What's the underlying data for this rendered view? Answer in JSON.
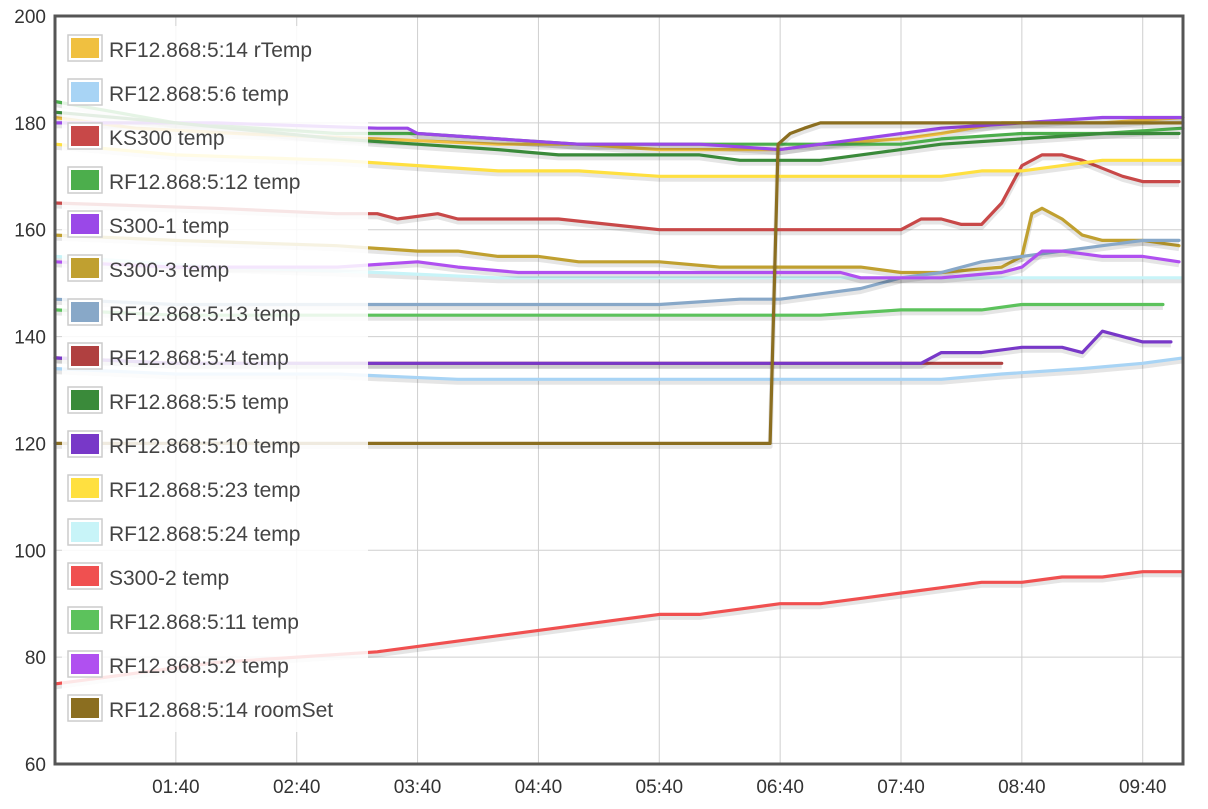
{
  "chart_data": {
    "type": "line",
    "title": "",
    "xlabel": "",
    "ylabel": "",
    "ylim": [
      60,
      200
    ],
    "yticks": [
      60,
      80,
      100,
      120,
      140,
      160,
      180,
      200
    ],
    "x_unit": "minutes since 00:40",
    "xlim": [
      0,
      560
    ],
    "xticks": [
      {
        "x": 60,
        "label": "01:40"
      },
      {
        "x": 120,
        "label": "02:40"
      },
      {
        "x": 180,
        "label": "03:40"
      },
      {
        "x": 240,
        "label": "04:40"
      },
      {
        "x": 300,
        "label": "05:40"
      },
      {
        "x": 360,
        "label": "06:40"
      },
      {
        "x": 420,
        "label": "07:40"
      },
      {
        "x": 480,
        "label": "08:40"
      },
      {
        "x": 540,
        "label": "09:40"
      }
    ],
    "grid": true,
    "legend_position": "top-left",
    "series": [
      {
        "name": "RF12.868:5:14 rTemp",
        "color": "#f0c040",
        "points": [
          [
            0,
            181
          ],
          [
            40,
            179
          ],
          [
            90,
            178
          ],
          [
            160,
            177
          ],
          [
            220,
            176
          ],
          [
            260,
            176
          ],
          [
            300,
            175
          ],
          [
            340,
            175
          ],
          [
            360,
            175
          ],
          [
            380,
            176
          ],
          [
            420,
            177
          ],
          [
            440,
            178
          ],
          [
            470,
            180
          ],
          [
            490,
            180
          ],
          [
            520,
            180
          ],
          [
            560,
            181
          ]
        ]
      },
      {
        "name": "RF12.868:5:6 temp",
        "color": "#a8d4f5",
        "points": [
          [
            0,
            134
          ],
          [
            60,
            133
          ],
          [
            140,
            133
          ],
          [
            200,
            132
          ],
          [
            260,
            132
          ],
          [
            300,
            132
          ],
          [
            360,
            132
          ],
          [
            400,
            132
          ],
          [
            440,
            132
          ],
          [
            470,
            133
          ],
          [
            510,
            134
          ],
          [
            540,
            135
          ],
          [
            560,
            136
          ]
        ]
      },
      {
        "name": "KS300 temp",
        "color": "#c84848",
        "points": [
          [
            0,
            165
          ],
          [
            80,
            164
          ],
          [
            140,
            163
          ],
          [
            160,
            163
          ],
          [
            170,
            162
          ],
          [
            190,
            163
          ],
          [
            200,
            162
          ],
          [
            250,
            162
          ],
          [
            300,
            160
          ],
          [
            340,
            160
          ],
          [
            420,
            160
          ],
          [
            430,
            162
          ],
          [
            440,
            162
          ],
          [
            450,
            161
          ],
          [
            460,
            161
          ],
          [
            470,
            165
          ],
          [
            480,
            172
          ],
          [
            490,
            174
          ],
          [
            500,
            174
          ],
          [
            510,
            173
          ],
          [
            530,
            170
          ],
          [
            540,
            169
          ],
          [
            558,
            169
          ]
        ]
      },
      {
        "name": "RF12.868:5:12 temp",
        "color": "#4cae4c",
        "points": [
          [
            0,
            184
          ],
          [
            60,
            180
          ],
          [
            140,
            178
          ],
          [
            180,
            178
          ],
          [
            220,
            177
          ],
          [
            260,
            176
          ],
          [
            300,
            176
          ],
          [
            340,
            176
          ],
          [
            360,
            176
          ],
          [
            380,
            176
          ],
          [
            420,
            176
          ],
          [
            440,
            177
          ],
          [
            480,
            178
          ],
          [
            520,
            178
          ],
          [
            560,
            179
          ]
        ]
      },
      {
        "name": "S300-1 temp",
        "color": "#9a48e8",
        "points": [
          [
            0,
            180
          ],
          [
            80,
            180
          ],
          [
            160,
            179
          ],
          [
            175,
            179
          ],
          [
            180,
            178
          ],
          [
            220,
            177
          ],
          [
            260,
            176
          ],
          [
            320,
            176
          ],
          [
            360,
            175
          ],
          [
            380,
            176
          ],
          [
            400,
            177
          ],
          [
            440,
            179
          ],
          [
            480,
            180
          ],
          [
            520,
            181
          ],
          [
            560,
            181
          ]
        ]
      },
      {
        "name": "S300-3 temp",
        "color": "#c0a030",
        "points": [
          [
            0,
            159
          ],
          [
            60,
            158
          ],
          [
            140,
            157
          ],
          [
            180,
            156
          ],
          [
            200,
            156
          ],
          [
            220,
            155
          ],
          [
            240,
            155
          ],
          [
            260,
            154
          ],
          [
            300,
            154
          ],
          [
            330,
            153
          ],
          [
            360,
            153
          ],
          [
            400,
            153
          ],
          [
            420,
            152
          ],
          [
            440,
            152
          ],
          [
            470,
            153
          ],
          [
            480,
            155
          ],
          [
            485,
            163
          ],
          [
            490,
            164
          ],
          [
            500,
            162
          ],
          [
            510,
            159
          ],
          [
            520,
            158
          ],
          [
            540,
            158
          ],
          [
            558,
            157
          ]
        ]
      },
      {
        "name": "RF12.868:5:13 temp",
        "color": "#88a8c8",
        "points": [
          [
            0,
            147
          ],
          [
            60,
            146
          ],
          [
            140,
            146
          ],
          [
            200,
            146
          ],
          [
            260,
            146
          ],
          [
            300,
            146
          ],
          [
            340,
            147
          ],
          [
            360,
            147
          ],
          [
            380,
            148
          ],
          [
            400,
            149
          ],
          [
            420,
            151
          ],
          [
            440,
            152
          ],
          [
            460,
            154
          ],
          [
            480,
            155
          ],
          [
            500,
            156
          ],
          [
            520,
            157
          ],
          [
            540,
            158
          ],
          [
            558,
            158
          ]
        ]
      },
      {
        "name": "RF12.868:5:4 temp",
        "color": "#b04040",
        "points": [
          [
            0,
            136
          ],
          [
            60,
            135
          ],
          [
            140,
            135
          ],
          [
            200,
            135
          ],
          [
            260,
            135
          ],
          [
            300,
            135
          ],
          [
            360,
            135
          ],
          [
            400,
            135
          ],
          [
            420,
            135
          ],
          [
            440,
            135
          ],
          [
            460,
            135
          ],
          [
            470,
            135
          ]
        ]
      },
      {
        "name": "RF12.868:5:5 temp",
        "color": "#3a8a3a",
        "points": [
          [
            0,
            182
          ],
          [
            60,
            180
          ],
          [
            140,
            177
          ],
          [
            180,
            176
          ],
          [
            220,
            175
          ],
          [
            250,
            174
          ],
          [
            280,
            174
          ],
          [
            320,
            174
          ],
          [
            340,
            173
          ],
          [
            360,
            173
          ],
          [
            380,
            173
          ],
          [
            400,
            174
          ],
          [
            420,
            175
          ],
          [
            440,
            176
          ],
          [
            480,
            177
          ],
          [
            520,
            178
          ],
          [
            558,
            178
          ]
        ]
      },
      {
        "name": "RF12.868:5:10 temp",
        "color": "#7838c8",
        "points": [
          [
            0,
            136
          ],
          [
            60,
            135
          ],
          [
            140,
            135
          ],
          [
            200,
            135
          ],
          [
            260,
            135
          ],
          [
            300,
            135
          ],
          [
            360,
            135
          ],
          [
            400,
            135
          ],
          [
            430,
            135
          ],
          [
            440,
            137
          ],
          [
            460,
            137
          ],
          [
            480,
            138
          ],
          [
            500,
            138
          ],
          [
            510,
            137
          ],
          [
            520,
            141
          ],
          [
            530,
            140
          ],
          [
            540,
            139
          ],
          [
            554,
            139
          ]
        ]
      },
      {
        "name": "RF12.868:5:23 temp",
        "color": "#ffe040",
        "points": [
          [
            0,
            176
          ],
          [
            60,
            174
          ],
          [
            140,
            173
          ],
          [
            180,
            172
          ],
          [
            220,
            171
          ],
          [
            260,
            171
          ],
          [
            300,
            170
          ],
          [
            340,
            170
          ],
          [
            380,
            170
          ],
          [
            420,
            170
          ],
          [
            440,
            170
          ],
          [
            460,
            171
          ],
          [
            480,
            171
          ],
          [
            500,
            172
          ],
          [
            520,
            173
          ],
          [
            560,
            173
          ]
        ]
      },
      {
        "name": "RF12.868:5:24 temp",
        "color": "#c8f4f8",
        "points": [
          [
            0,
            155
          ],
          [
            80,
            153
          ],
          [
            160,
            152
          ],
          [
            220,
            151
          ],
          [
            280,
            151
          ],
          [
            340,
            151
          ],
          [
            400,
            151
          ],
          [
            440,
            151
          ],
          [
            480,
            151
          ],
          [
            520,
            151
          ],
          [
            560,
            151
          ]
        ]
      },
      {
        "name": "S300-2 temp",
        "color": "#f05050",
        "points": [
          [
            0,
            75
          ],
          [
            40,
            77
          ],
          [
            80,
            79
          ],
          [
            160,
            81
          ],
          [
            200,
            83
          ],
          [
            240,
            85
          ],
          [
            280,
            87
          ],
          [
            300,
            88
          ],
          [
            320,
            88
          ],
          [
            340,
            89
          ],
          [
            360,
            90
          ],
          [
            380,
            90
          ],
          [
            400,
            91
          ],
          [
            420,
            92
          ],
          [
            440,
            93
          ],
          [
            460,
            94
          ],
          [
            480,
            94
          ],
          [
            500,
            95
          ],
          [
            520,
            95
          ],
          [
            540,
            96
          ],
          [
            560,
            96
          ]
        ]
      },
      {
        "name": "RF12.868:5:11 temp",
        "color": "#5cc25c",
        "points": [
          [
            0,
            145
          ],
          [
            60,
            144
          ],
          [
            140,
            144
          ],
          [
            200,
            144
          ],
          [
            260,
            144
          ],
          [
            300,
            144
          ],
          [
            340,
            144
          ],
          [
            380,
            144
          ],
          [
            420,
            145
          ],
          [
            460,
            145
          ],
          [
            480,
            146
          ],
          [
            520,
            146
          ],
          [
            550,
            146
          ]
        ]
      },
      {
        "name": "RF12.868:5:2 temp",
        "color": "#b050f0",
        "points": [
          [
            0,
            154
          ],
          [
            60,
            153
          ],
          [
            140,
            153
          ],
          [
            180,
            154
          ],
          [
            200,
            153
          ],
          [
            230,
            152
          ],
          [
            260,
            152
          ],
          [
            300,
            152
          ],
          [
            340,
            152
          ],
          [
            360,
            152
          ],
          [
            390,
            152
          ],
          [
            400,
            151
          ],
          [
            440,
            151
          ],
          [
            470,
            152
          ],
          [
            480,
            153
          ],
          [
            490,
            156
          ],
          [
            500,
            156
          ],
          [
            520,
            155
          ],
          [
            540,
            155
          ],
          [
            558,
            154
          ]
        ]
      },
      {
        "name": "RF12.868:5:14 roomSet",
        "color": "#8b6e20",
        "points": [
          [
            0,
            120
          ],
          [
            60,
            120
          ],
          [
            140,
            120
          ],
          [
            200,
            120
          ],
          [
            260,
            120
          ],
          [
            300,
            120
          ],
          [
            330,
            120
          ],
          [
            355,
            120
          ],
          [
            359,
            176
          ],
          [
            365,
            178
          ],
          [
            372,
            179
          ],
          [
            380,
            180
          ],
          [
            420,
            180
          ],
          [
            460,
            180
          ],
          [
            500,
            180
          ],
          [
            540,
            180
          ],
          [
            560,
            180
          ]
        ]
      }
    ]
  }
}
